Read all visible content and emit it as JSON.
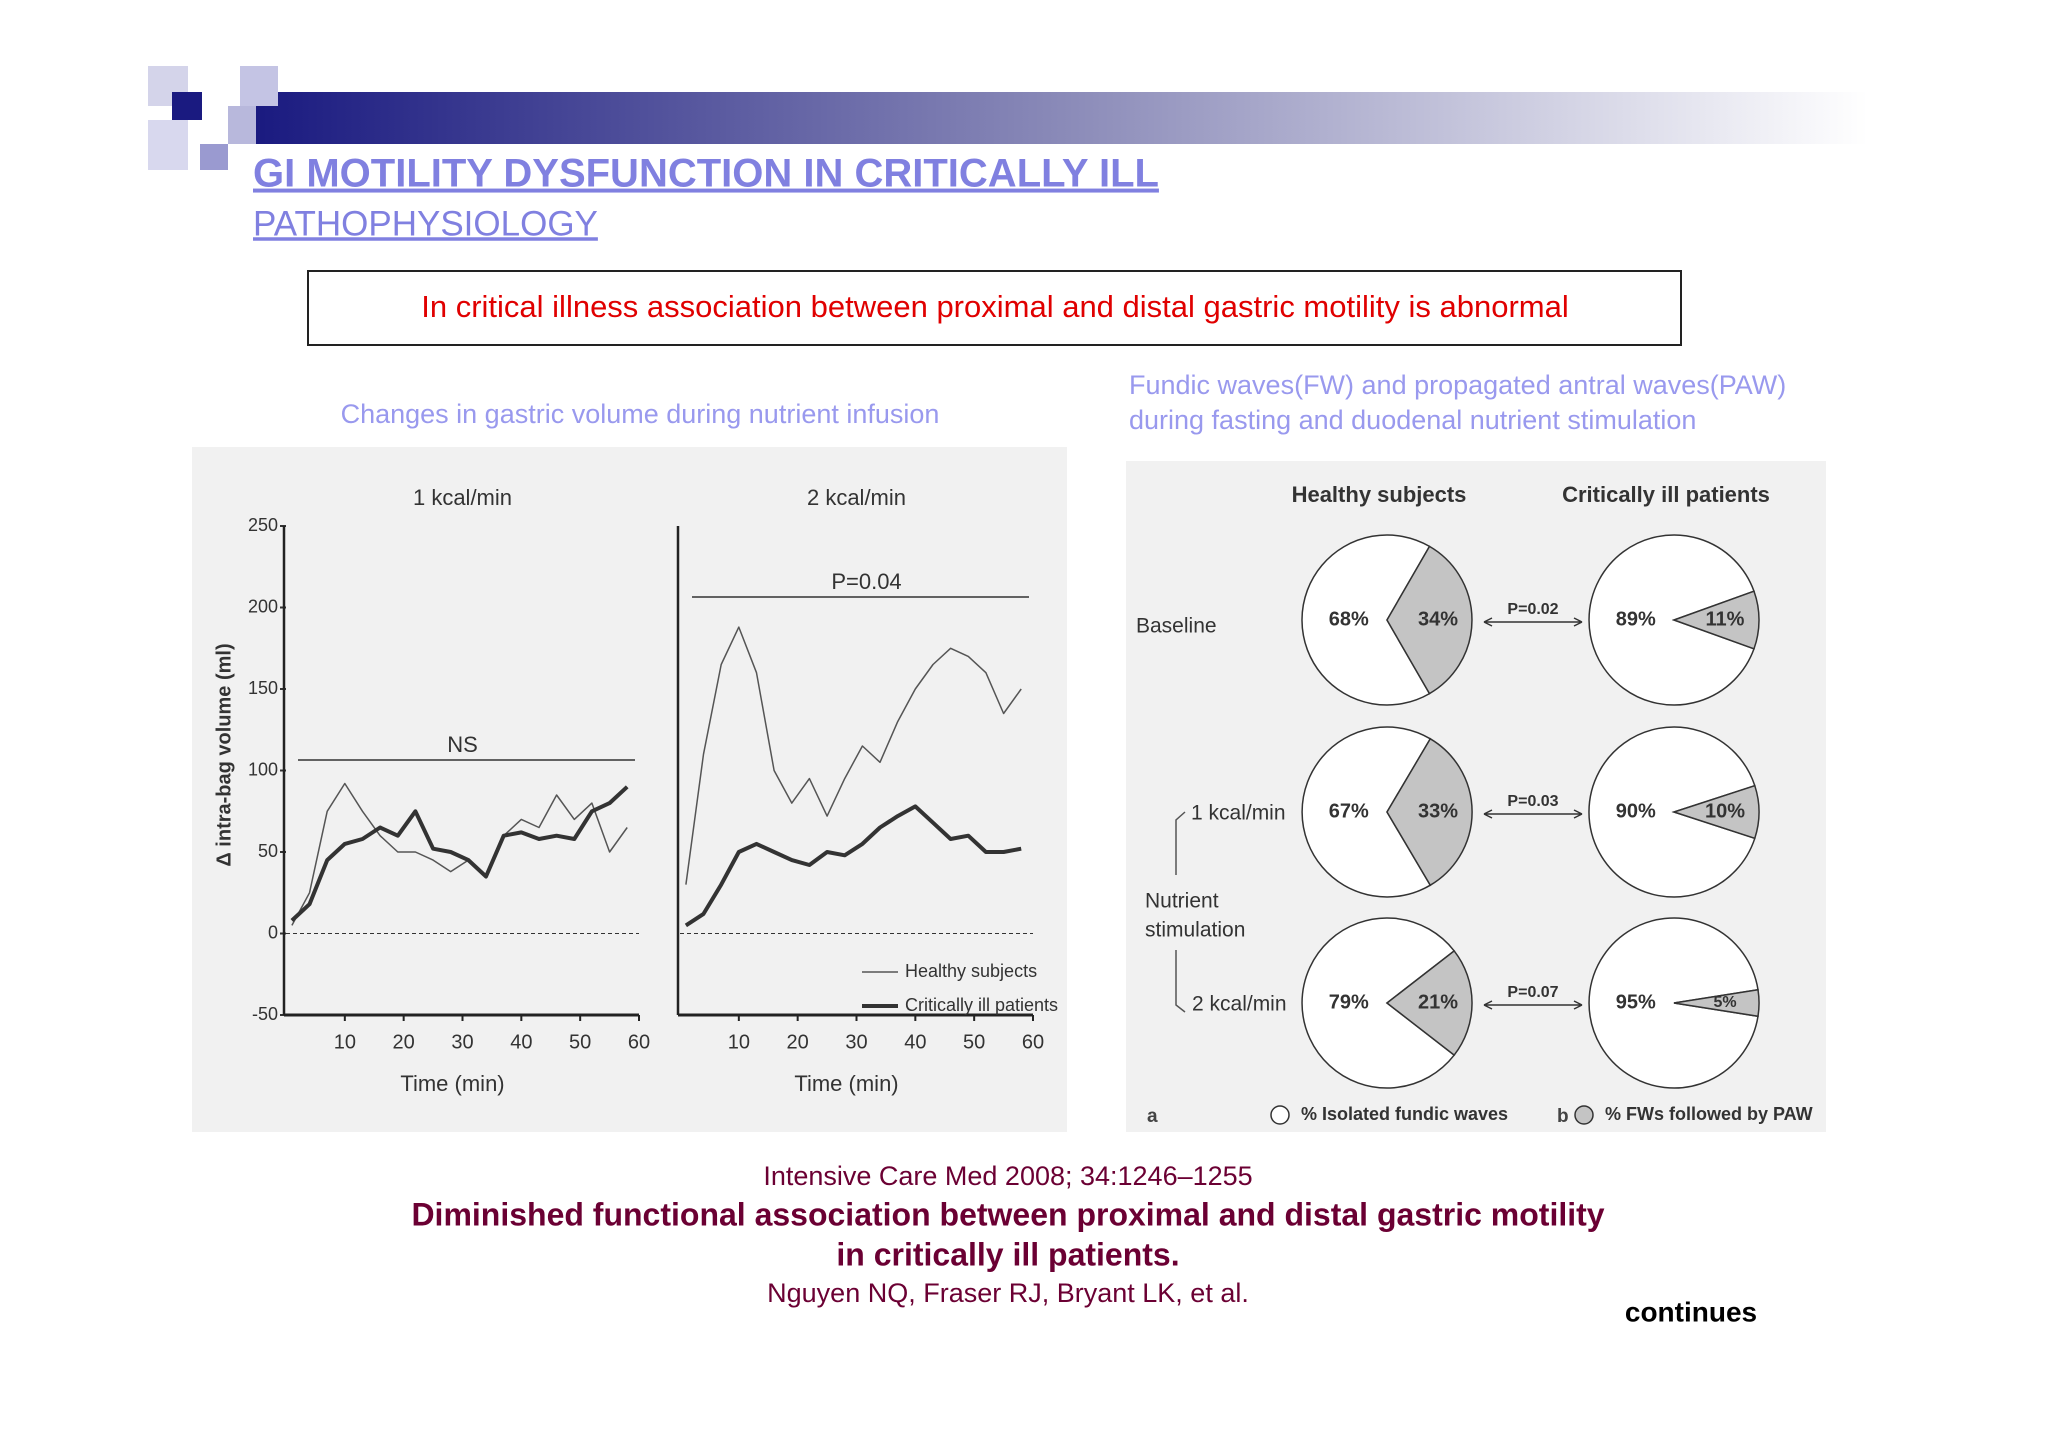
{
  "header": {
    "title": "GI MOTILITY DYSFUNCTION IN CRITICALLY ILL",
    "subtitle": "PATHOPHYSIOLOGY"
  },
  "callout": "In critical illness association between proximal and distal gastric motility is abnormal",
  "chart_data": [
    {
      "type": "line",
      "title": "Changes in gastric volume during nutrient infusion",
      "y_label": "Δ intra-bag volume (ml)",
      "x_label": "Time (min)",
      "ylim": [
        -50,
        250
      ],
      "yticks": [
        -50,
        0,
        50,
        100,
        150,
        200,
        250
      ],
      "xlim": [
        0,
        60
      ],
      "xticks": [
        10,
        20,
        30,
        40,
        50,
        60
      ],
      "panels": [
        {
          "title": "1 kcal/min",
          "annotation": "NS",
          "x": [
            1,
            4,
            7,
            10,
            13,
            16,
            19,
            22,
            25,
            28,
            31,
            34,
            37,
            40,
            43,
            46,
            49,
            52,
            55,
            58
          ],
          "series": [
            {
              "color": "#555555",
              "values": [
                5,
                25,
                75,
                92,
                75,
                60,
                50,
                50,
                45,
                38,
                45,
                35,
                60,
                70,
                65,
                85,
                70,
                80,
                50,
                65
              ]
            },
            {
              "color": "#333333",
              "values": [
                8,
                18,
                45,
                55,
                58,
                65,
                60,
                75,
                52,
                50,
                45,
                35,
                60,
                62,
                58,
                60,
                58,
                75,
                80,
                90
              ]
            }
          ]
        },
        {
          "title": "2 kcal/min",
          "annotation": "P=0.04",
          "x": [
            1,
            4,
            7,
            10,
            13,
            16,
            19,
            22,
            25,
            28,
            31,
            34,
            37,
            40,
            43,
            46,
            49,
            52,
            55,
            58
          ],
          "series": [
            {
              "name": "Healthy subjects",
              "color": "#555555",
              "values": [
                30,
                110,
                165,
                188,
                160,
                100,
                80,
                95,
                72,
                95,
                115,
                105,
                130,
                150,
                165,
                175,
                170,
                160,
                135,
                150
              ]
            },
            {
              "name": "Critically ill patients",
              "color": "#333333",
              "values": [
                5,
                12,
                30,
                50,
                55,
                50,
                45,
                42,
                50,
                48,
                55,
                65,
                72,
                78,
                68,
                58,
                60,
                50,
                50,
                52
              ]
            }
          ]
        }
      ]
    },
    {
      "type": "pie",
      "title": "Fundic waves(FW) and propagated antral waves(PAW)",
      "subtitle": "during fasting and duodenal nutrient stimulation",
      "columns": [
        "Healthy subjects",
        "Critically ill patients"
      ],
      "rows": [
        "Baseline",
        "1 kcal/min",
        "2 kcal/min"
      ],
      "group_label": [
        "Nutrient",
        "stimulation"
      ],
      "colors": [
        "#ffffff",
        "#c4c4c4"
      ],
      "pies": [
        {
          "values": [
            68,
            34
          ],
          "value_labels": [
            "68%",
            "34%"
          ]
        },
        {
          "values": [
            89,
            11
          ],
          "value_labels": [
            "89%",
            "11%"
          ]
        },
        {
          "values": [
            67,
            33
          ],
          "value_labels": [
            "67%",
            "33%"
          ]
        },
        {
          "values": [
            90,
            10
          ],
          "value_labels": [
            "90%",
            "10%"
          ]
        },
        {
          "values": [
            79,
            21
          ],
          "value_labels": [
            "79%",
            "21%"
          ]
        },
        {
          "values": [
            95,
            5
          ],
          "value_labels": [
            "95%",
            "5%"
          ]
        }
      ],
      "p_values": [
        "P=0.02",
        "P=0.03",
        "P=0.07"
      ],
      "legend": [
        "% Isolated fundic waves",
        "% FWs followed by PAW"
      ],
      "panel_labels": [
        "a",
        "b"
      ]
    }
  ],
  "citation": {
    "journal": "Intensive Care Med 2008; 34:1246–1255",
    "title": [
      "Diminished functional association between proximal and distal gastric motility",
      "in critically ill patients."
    ],
    "authors": "Nguyen NQ, Fraser RJ, Bryant LK, et al."
  },
  "footer": "continues"
}
